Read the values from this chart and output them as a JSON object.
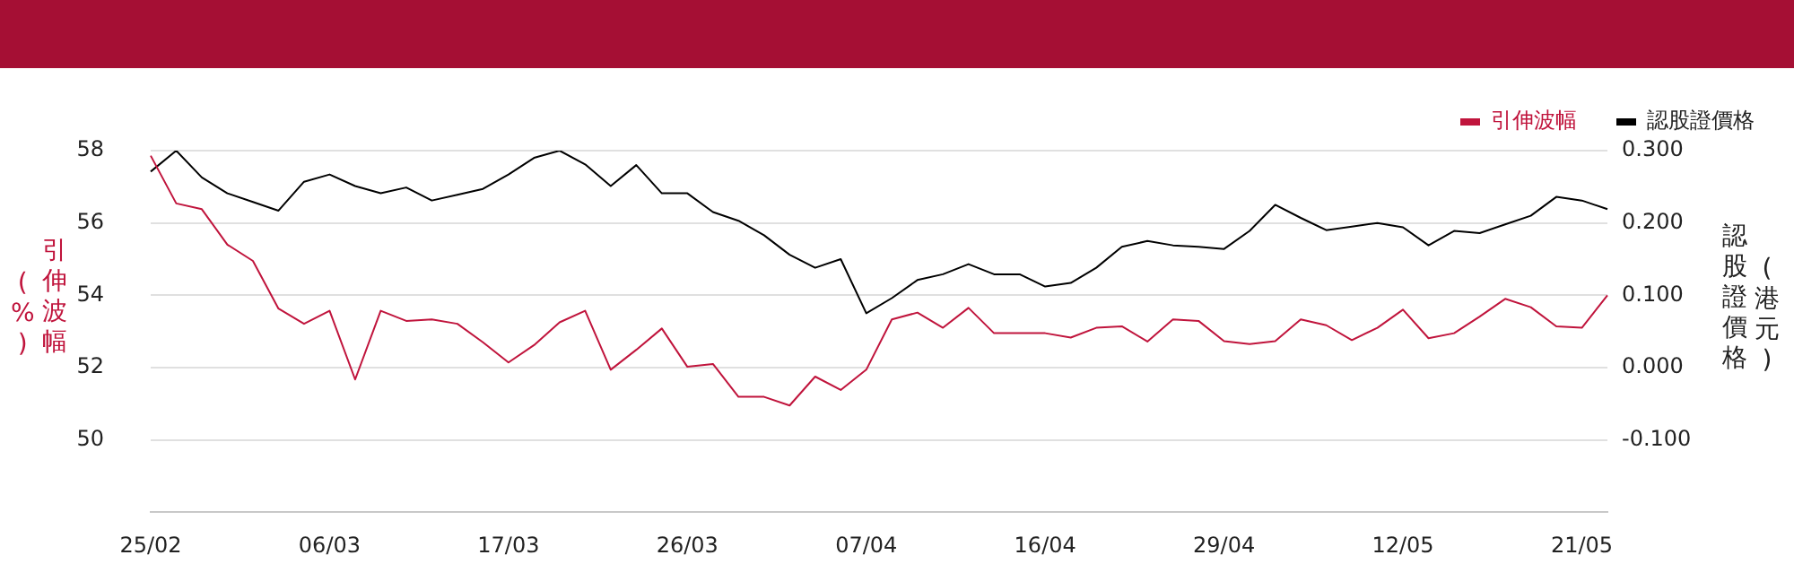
{
  "chart_data": {
    "type": "line",
    "xlabel": null,
    "ylabel": "引伸波幅(%)",
    "y2label": "認股證價格(港元)",
    "categories": [
      "25/02",
      null,
      null,
      null,
      null,
      null,
      null,
      "06/03",
      null,
      null,
      null,
      null,
      null,
      null,
      "17/03",
      null,
      null,
      null,
      null,
      null,
      null,
      "26/03",
      null,
      null,
      null,
      null,
      null,
      null,
      "07/04",
      null,
      null,
      null,
      null,
      null,
      null,
      "16/04",
      null,
      null,
      null,
      null,
      null,
      null,
      "29/04",
      null,
      null,
      null,
      null,
      null,
      null,
      "12/05",
      null,
      null,
      null,
      null,
      null,
      null,
      "21/05",
      null
    ],
    "series": [
      {
        "name": "引伸波幅",
        "color": "#c0143c",
        "values": [
          57.86,
          56.54,
          56.38,
          55.4,
          54.95,
          53.63,
          53.21,
          53.57,
          51.67,
          53.57,
          53.29,
          53.33,
          53.21,
          52.7,
          52.14,
          52.62,
          53.25,
          53.57,
          51.94,
          52.49,
          53.08,
          52.02,
          52.1,
          51.19,
          51.19,
          50.95,
          51.75,
          51.38,
          51.94,
          53.33,
          53.52,
          53.1,
          53.65,
          52.95,
          52.95,
          52.95,
          52.83,
          53.1,
          53.14,
          52.72,
          53.33,
          53.29,
          52.73,
          52.65,
          52.73,
          53.33,
          53.17,
          52.76,
          53.1,
          53.6,
          52.81,
          52.95,
          53.41,
          53.9,
          53.67,
          53.14,
          53.1,
          54.0
        ]
      },
      {
        "name": "認股證價格",
        "color": "#000000",
        "axis": "y2",
        "values": [
          0.271,
          0.3,
          0.263,
          0.241,
          0.229,
          0.217,
          0.257,
          0.267,
          0.251,
          0.241,
          0.249,
          0.231,
          0.239,
          0.247,
          0.267,
          0.29,
          0.3,
          0.281,
          0.251,
          0.28,
          0.241,
          0.241,
          0.215,
          0.203,
          0.183,
          0.156,
          0.138,
          0.15,
          0.075,
          0.096,
          0.121,
          0.129,
          0.143,
          0.129,
          0.129,
          0.112,
          0.117,
          0.138,
          0.167,
          0.175,
          0.169,
          0.167,
          0.164,
          0.189,
          0.225,
          0.207,
          0.19,
          0.195,
          0.2,
          0.194,
          0.169,
          0.189,
          0.186,
          0.198,
          0.21,
          0.236,
          0.231,
          0.219
        ]
      }
    ],
    "ylim": [
      48,
      58
    ],
    "yticks": [
      50,
      52,
      54,
      56,
      58
    ],
    "y2lim": [
      -0.2,
      0.3
    ],
    "y2ticks": [
      {
        "value": -0.1,
        "label": "-0.100"
      },
      {
        "value": 0,
        "label": "0.000"
      },
      {
        "value": 0.1,
        "label": "0.100"
      },
      {
        "value": 0.2,
        "label": "0.200"
      },
      {
        "value": 0.3,
        "label": "0.300"
      }
    ],
    "grid": "y",
    "legend": "top right",
    "marker": "none",
    "line_style": "solid"
  }
}
